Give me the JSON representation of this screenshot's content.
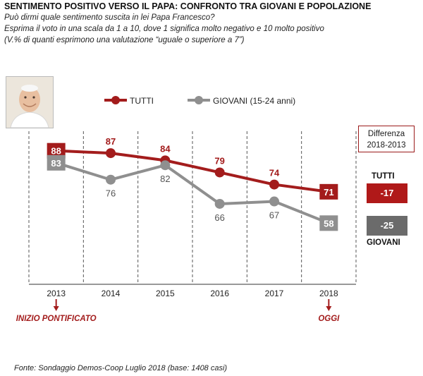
{
  "title": "SENTIMENTO POSITIVO VERSO IL PAPA: CONFRONTO  TRA GIOVANI E POPOLAZIONE",
  "subtitle_lines": [
    "Può dirmi quale sentimento suscita in lei Papa Francesco?",
    "Esprima il voto in una scala da 1 a 10, dove 1 significa molto negativo e 10 molto positivo",
    "(V.% di quanti esprimono una valutazione “uguale o superiore  a 7”)"
  ],
  "colors": {
    "tutti": "#a31c1c",
    "giovani": "#8f8f8f",
    "badge_tutti": "#b01919",
    "badge_giovani": "#6b6b6b",
    "annotation": "#a31c1c"
  },
  "chart_data": {
    "type": "line",
    "categories": [
      "2013",
      "2014",
      "2015",
      "2016",
      "2017",
      "2018"
    ],
    "series": [
      {
        "name": "TUTTI",
        "values": [
          88,
          87,
          84,
          79,
          74,
          71
        ]
      },
      {
        "name": "GIOVANI (15-24 anni)",
        "values": [
          83,
          76,
          82,
          66,
          67,
          58
        ]
      }
    ],
    "ylim": [
      50,
      95
    ],
    "grid": "vertical dashed",
    "legend": "top",
    "annotations": [
      {
        "category": "2013",
        "text": "INIZIO PONTIFICATO"
      },
      {
        "category": "2018",
        "text": "OGGI"
      }
    ]
  },
  "differenza": {
    "title_line1": "Differenza",
    "title_line2": "2018-2013",
    "tutti_label": "TUTTI",
    "tutti_value": "-17",
    "giovani_label": "GIOVANI",
    "giovani_value": "-25"
  },
  "photo_icon": "pope-portrait-icon",
  "source": "Fonte: Sondaggio Demos-Coop Luglio 2018 (base: 1408 casi)"
}
